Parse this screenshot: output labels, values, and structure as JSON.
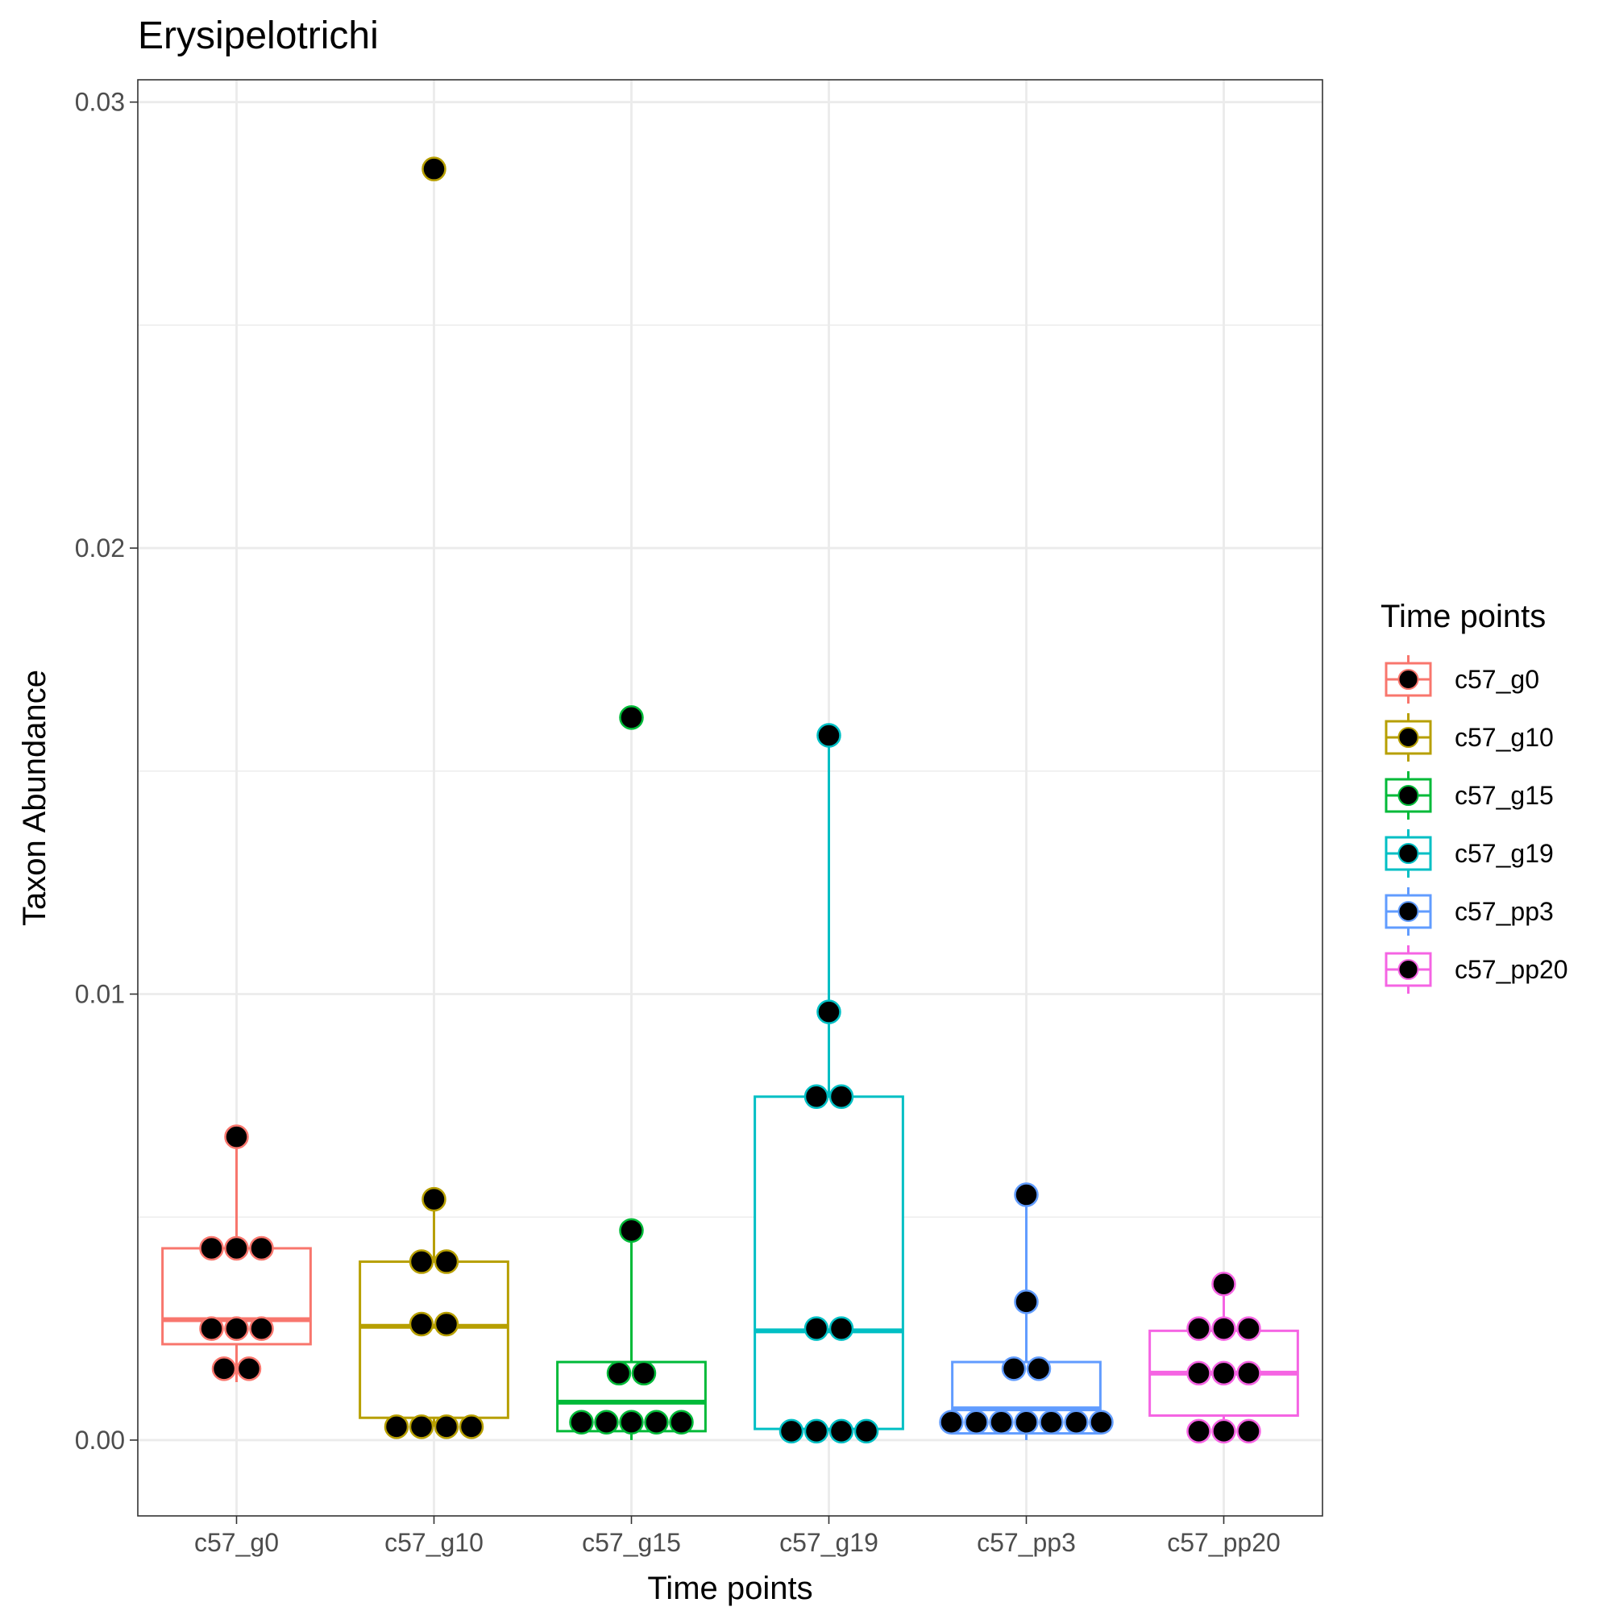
{
  "chart_data": {
    "type": "box",
    "title": "Erysipelotrichi",
    "xlabel": "Time points",
    "ylabel": "Taxon Abundance",
    "ylim": [
      -0.0017,
      0.0305
    ],
    "yticks": [
      0.0,
      0.01,
      0.02,
      0.03
    ],
    "ytick_labels": [
      "0.00",
      "0.01",
      "0.02",
      "0.03"
    ],
    "grid": true,
    "legend": {
      "title": "Time points",
      "position": "right"
    },
    "categories": [
      "c57_g0",
      "c57_g10",
      "c57_g15",
      "c57_g19",
      "c57_pp3",
      "c57_pp20"
    ],
    "series": [
      {
        "name": "c57_g0",
        "color": "#F8766D",
        "box": {
          "lower_whisker": 0.0013,
          "q1": 0.00215,
          "median": 0.0027,
          "q3": 0.0043,
          "upper_whisker": 0.0068
        },
        "points": [
          0.0068,
          0.0043,
          0.0043,
          0.0043,
          0.0025,
          0.0025,
          0.0025,
          0.0016,
          0.0016
        ]
      },
      {
        "name": "c57_g10",
        "color": "#B79F00",
        "box": {
          "lower_whisker": 0.0003,
          "q1": 0.0005,
          "median": 0.00255,
          "q3": 0.004,
          "upper_whisker": 0.0054
        },
        "points": [
          0.0285,
          0.0054,
          0.004,
          0.004,
          0.0026,
          0.0026,
          0.0003,
          0.0003,
          0.0003,
          0.0003
        ]
      },
      {
        "name": "c57_g15",
        "color": "#00BA38",
        "box": {
          "lower_whisker": 0.0,
          "q1": 0.0002,
          "median": 0.00085,
          "q3": 0.00175,
          "upper_whisker": 0.0047
        },
        "points": [
          0.0162,
          0.0047,
          0.0015,
          0.0015,
          0.0004,
          0.0004,
          0.0004,
          0.0004,
          0.0004
        ]
      },
      {
        "name": "c57_g19",
        "color": "#00BFC4",
        "box": {
          "lower_whisker": 0.0002,
          "q1": 0.00025,
          "median": 0.00245,
          "q3": 0.0077,
          "upper_whisker": 0.0158
        },
        "points": [
          0.0158,
          0.0096,
          0.0077,
          0.0077,
          0.0025,
          0.0025,
          0.0002,
          0.0002,
          0.0002,
          0.0002
        ]
      },
      {
        "name": "c57_pp3",
        "color": "#619CFF",
        "box": {
          "lower_whisker": 0.0,
          "q1": 0.00015,
          "median": 0.0007,
          "q3": 0.00175,
          "upper_whisker": 0.0055
        },
        "points": [
          0.0055,
          0.0031,
          0.0016,
          0.0016,
          0.0004,
          0.0004,
          0.0004,
          0.0004,
          0.0004,
          0.0004,
          0.0004
        ]
      },
      {
        "name": "c57_pp20",
        "color": "#F564E3",
        "box": {
          "lower_whisker": 0.0,
          "q1": 0.00055,
          "median": 0.0015,
          "q3": 0.00245,
          "upper_whisker": 0.0035
        },
        "points": [
          0.0035,
          0.0025,
          0.0025,
          0.0025,
          0.0015,
          0.0015,
          0.0015,
          0.0002,
          0.0002,
          0.0002
        ]
      }
    ]
  }
}
